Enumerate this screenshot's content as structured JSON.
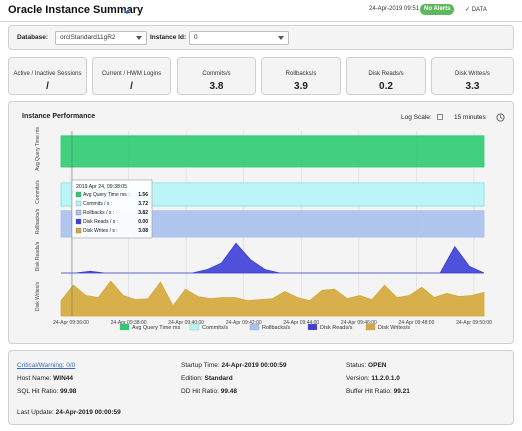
{
  "header": {
    "title": "Oracle Instance Summary",
    "date": "24-Apr-2019 09:51",
    "alerts_badge": "No Alerts",
    "data_label": "DATA",
    "colors": {
      "badge": "#5cb85c",
      "accent": "#3a6cc1"
    }
  },
  "selectors": {
    "database_label": "Database:",
    "database_value": "orclStandard11gR2",
    "instance_label": "Instance Id:",
    "instance_value": "0"
  },
  "kpis": [
    {
      "label": "Active / Inactive Sessions",
      "value": "/"
    },
    {
      "label": "Current / HWM Logins",
      "value": "/"
    },
    {
      "label": "Commits/s",
      "value": "3.8"
    },
    {
      "label": "Rollbacks/s",
      "value": "3.9"
    },
    {
      "label": "Disk Reads/s",
      "value": "0.2"
    },
    {
      "label": "Disk Writes/s",
      "value": "3.3"
    }
  ],
  "performance": {
    "title": "Instance Performance",
    "log_scale_label": "Log Scale:",
    "time_range": "15 minutes",
    "clock_icon": "clock-icon"
  },
  "chart_data": {
    "type": "area",
    "x": [
      "24-Apr 09:36:00",
      "24-Apr 09:38:00",
      "24-Apr 09:40:00",
      "24-Apr 09:42:00",
      "24-Apr 09:44:00",
      "24-Apr 09:46:00",
      "24-Apr 09:48:00",
      "24-Apr 09:50:00"
    ],
    "panels": [
      {
        "ylabel": "Avg Query Time ms",
        "series": "Avg Query Time ms",
        "color": "#2ecc71"
      },
      {
        "ylabel": "Commits/s",
        "series": "Commits/s",
        "color": "#b5f5f7"
      },
      {
        "ylabel": "Rollbacks/s",
        "series": "Rollbacks/s",
        "color": "#a9c1ee"
      },
      {
        "ylabel": "Disk Reads/s",
        "series": "Disk Reads/s",
        "color": "#3c3fd6"
      },
      {
        "ylabel": "Disk Writes/s",
        "series": "Disk Writes/s",
        "color": "#d4a93a"
      }
    ],
    "series_values": {
      "Avg Query Time ms": [
        1.56,
        1.56,
        1.56,
        1.56,
        1.56,
        1.56,
        1.56,
        1.56,
        1.56,
        1.56,
        1.56,
        1.56,
        1.56,
        1.56,
        1.56,
        1.56
      ],
      "Commits/s": [
        3.72,
        3.72,
        3.72,
        3.72,
        3.72,
        3.72,
        3.72,
        3.72,
        3.72,
        3.72,
        3.72,
        3.72,
        3.72,
        3.72,
        3.72,
        3.72
      ],
      "Rollbacks/s": [
        3.82,
        3.82,
        3.82,
        3.82,
        3.82,
        3.82,
        3.82,
        3.82,
        3.82,
        3.82,
        3.82,
        3.82,
        3.82,
        3.82,
        3.82,
        3.82
      ],
      "Disk Reads/s": [
        0,
        0,
        0.05,
        0,
        0,
        0,
        0,
        0,
        0,
        0,
        0.1,
        0.3,
        0.9,
        0.4,
        0.1,
        0,
        0,
        0,
        0,
        0,
        0,
        0,
        0,
        0,
        0,
        0,
        0,
        0.8,
        0.2,
        0
      ],
      "Disk Writes/s": [
        1.5,
        3,
        2,
        1.8,
        3.4,
        2,
        1.6,
        1.7,
        3.3,
        1,
        2.6,
        1.9,
        1.7,
        1.8,
        1.8,
        1.5,
        1.6,
        1.7,
        2.4,
        1.8,
        1.5,
        2.5,
        2.6,
        1.7,
        2.0,
        1.6,
        3.0,
        1.8,
        2.0,
        2.8,
        1.8,
        2.2,
        1.9,
        2.0,
        2.3
      ]
    },
    "tooltip": {
      "title": "2019 Apr 24, 09:38:05",
      "rows": [
        {
          "label": "Avg Query Time ms :",
          "value": "1.56",
          "color": "#2ecc71"
        },
        {
          "label": "Commits / s :",
          "value": "3.72",
          "color": "#b5f5f7"
        },
        {
          "label": "Rollbacks / s :",
          "value": "3.82",
          "color": "#a9c1ee"
        },
        {
          "label": "Disk Reads / s :",
          "value": "0.00",
          "color": "#3c3fd6"
        },
        {
          "label": "Disk Writes / s :",
          "value": "3.08",
          "color": "#d4a93a"
        }
      ]
    },
    "legend": [
      {
        "label": "Avg Query Time ms",
        "color": "#2ecc71"
      },
      {
        "label": "Commits/s",
        "color": "#b5f5f7"
      },
      {
        "label": "Rollbacks/s",
        "color": "#a9c1ee"
      },
      {
        "label": "Disk Reads/s",
        "color": "#3c3fd6"
      },
      {
        "label": "Disk Writes/s",
        "color": "#d4a93a"
      }
    ]
  },
  "footer": {
    "critical_warning": "Critical/Warning: 0/0",
    "host_name_label": "Host Name:",
    "host_name": "WIN44",
    "sql_hit_label": "SQL Hit Ratio:",
    "sql_hit": "99.98",
    "startup_label": "Startup Time:",
    "startup": "24-Apr-2019 00:00:59",
    "edition_label": "Edition:",
    "edition": "Standard",
    "dd_hit_label": "DD Hit Ratio:",
    "dd_hit": "99.48",
    "status_label": "Status:",
    "status": "OPEN",
    "version_label": "Version:",
    "version": "11.2.0.1.0",
    "buffer_hit_label": "Buffer Hit Ratio:",
    "buffer_hit": "99.21",
    "last_update_label": "Last Update:",
    "last_update": "24-Apr-2019 00:00:59"
  }
}
